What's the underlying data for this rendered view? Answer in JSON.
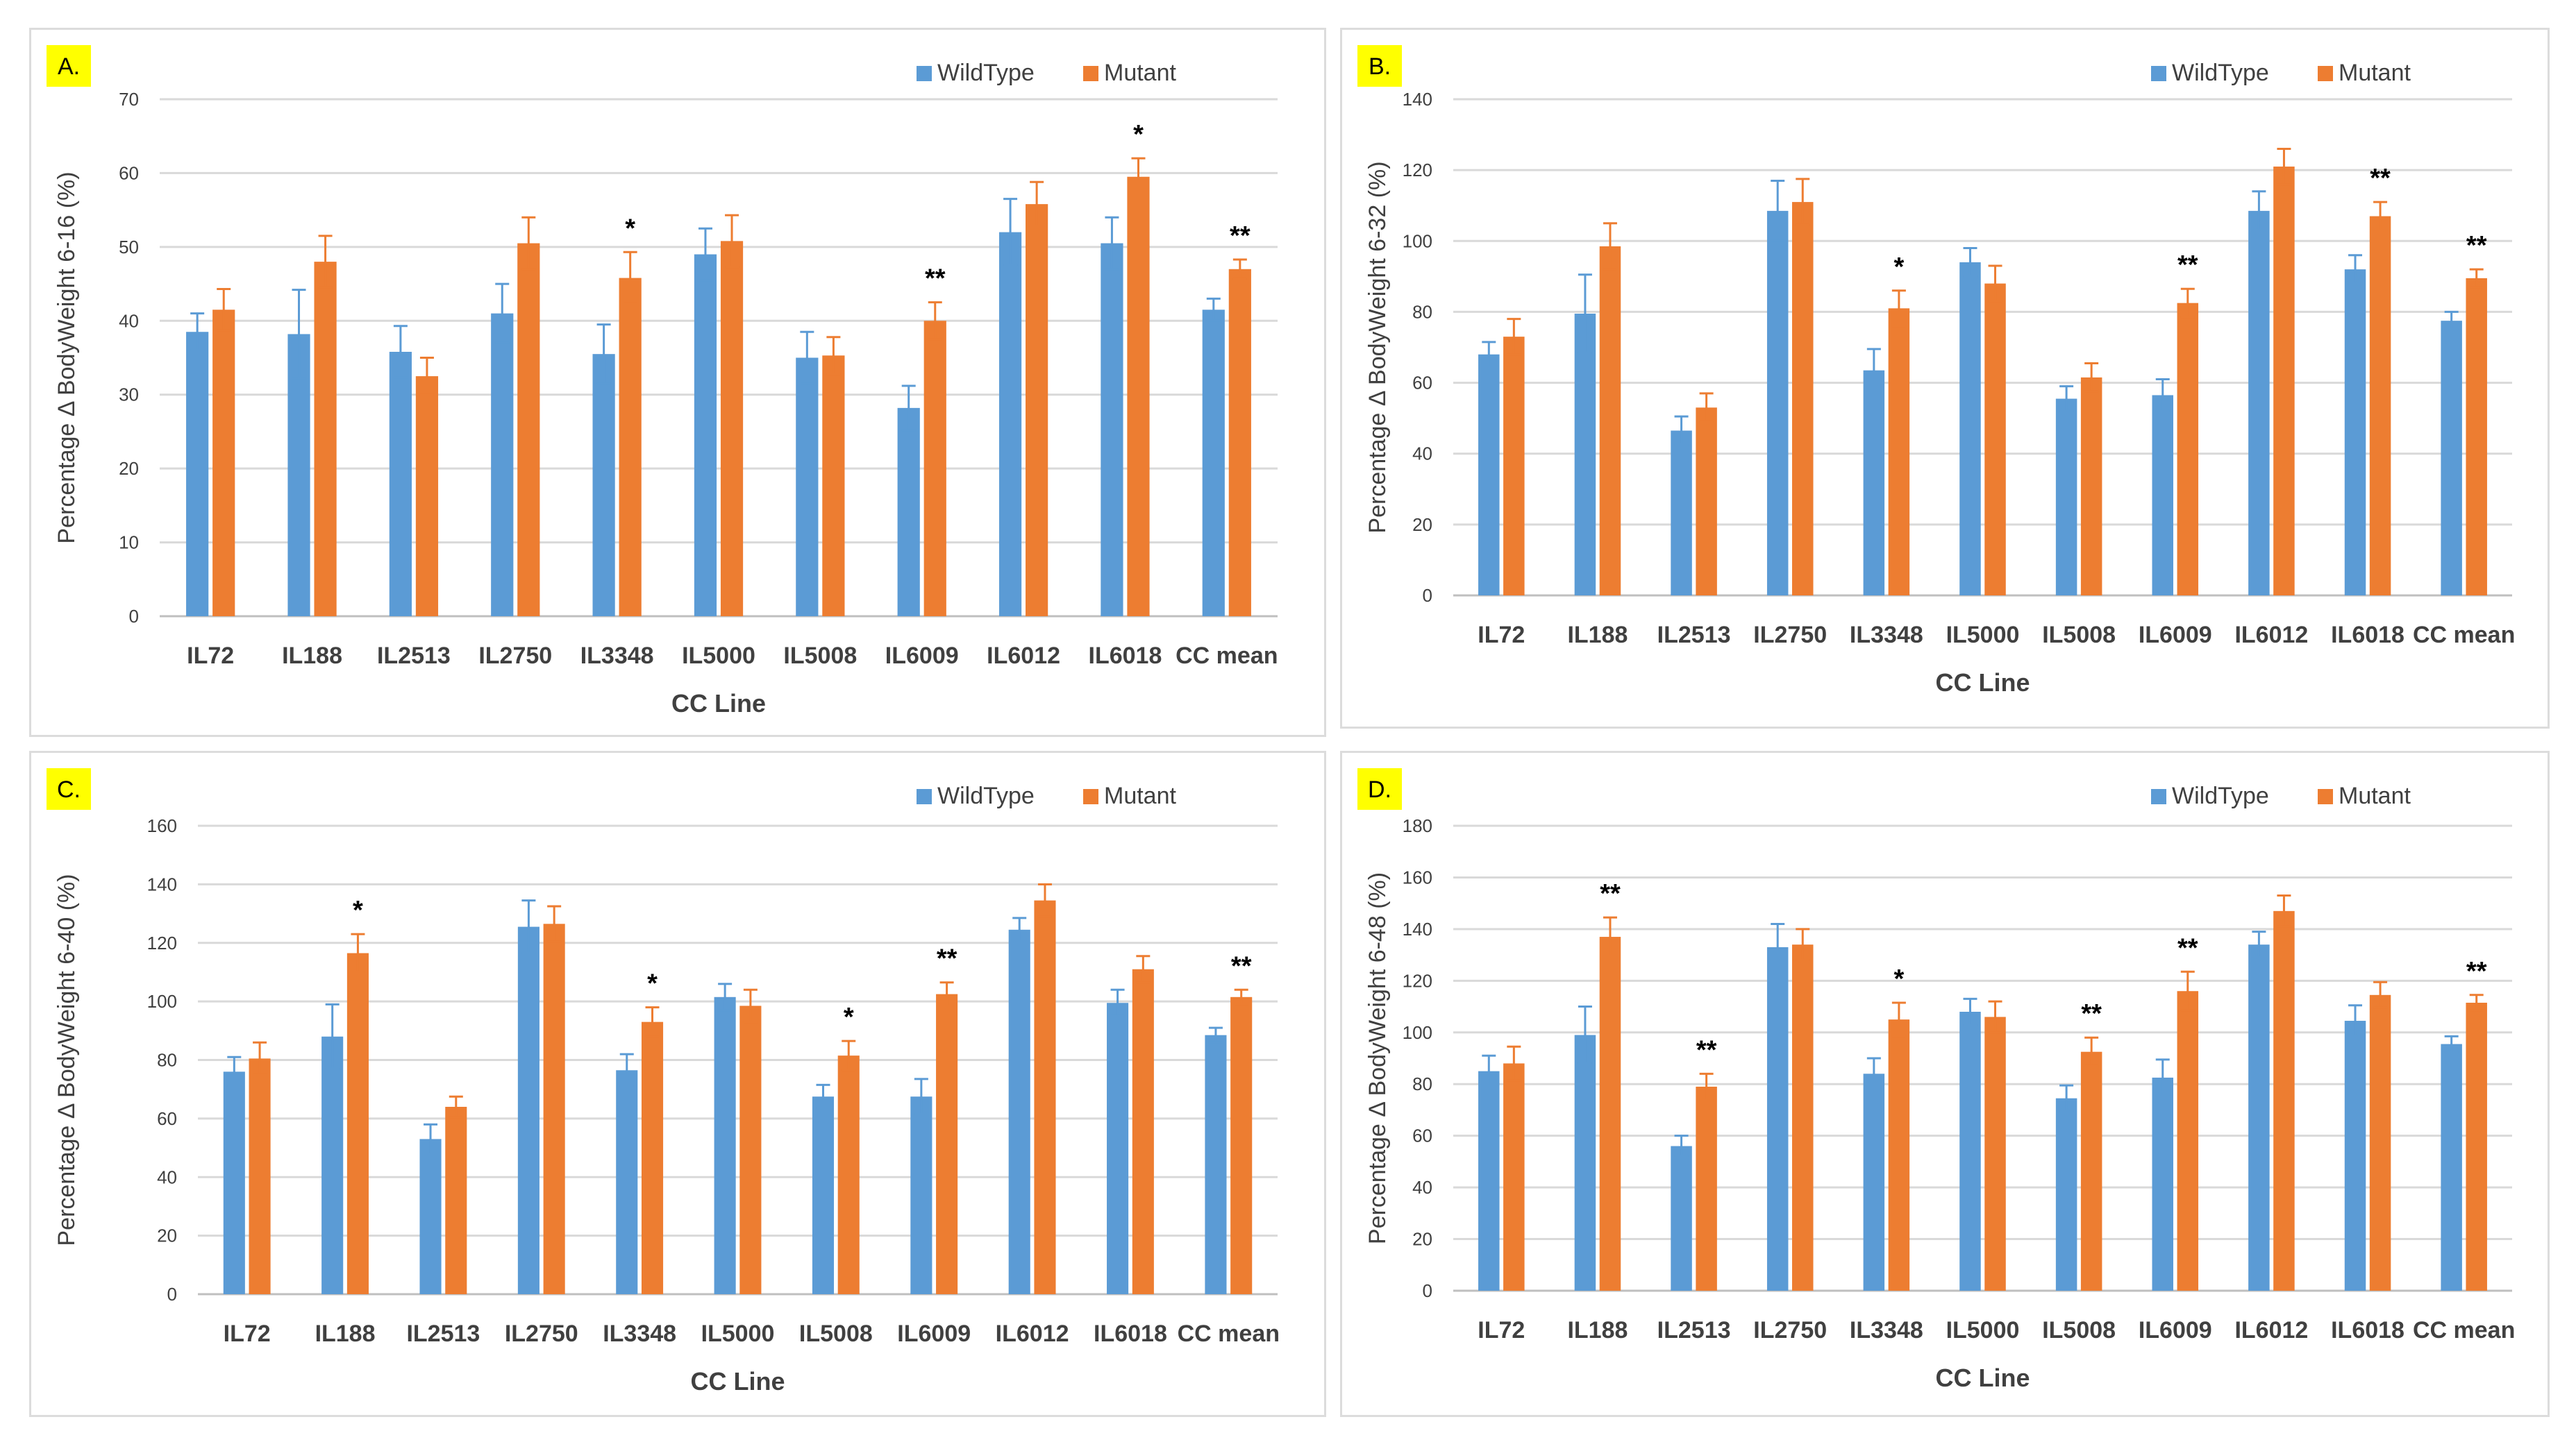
{
  "colors": {
    "wildtype": "#5b9bd5",
    "mutant": "#ed7d31",
    "grid": "#d9d9d9",
    "badge": "#ffff00",
    "text": "#404040"
  },
  "chart_data": [
    {
      "type": "bar",
      "panel_label": "A.",
      "ylabel": "Percentage Δ BodyWeight  6-16 (%)",
      "xlabel": "CC Line",
      "ylim": [
        0,
        70
      ],
      "yticks": [
        "0",
        "10",
        "20",
        "30",
        "40",
        "50",
        "60",
        "70"
      ],
      "legend_position": "top-right",
      "categories": [
        "IL72",
        "IL188",
        "IL2513",
        "IL2750",
        "IL3348",
        "IL5000",
        "IL5008",
        "IL6009",
        "IL6012",
        "IL6018",
        "CC mean"
      ],
      "series": [
        {
          "name": "WildType",
          "values": [
            38.5,
            38.2,
            35.8,
            41,
            35.5,
            49,
            35,
            28.2,
            52,
            50.5,
            41.5
          ],
          "errors": [
            2.5,
            6,
            3.5,
            4,
            4,
            3.5,
            3.5,
            3,
            4.5,
            3.5,
            1.5
          ]
        },
        {
          "name": "Mutant",
          "values": [
            41.5,
            48,
            32.5,
            50.5,
            45.8,
            50.8,
            35.3,
            40,
            55.8,
            59.5,
            47
          ],
          "errors": [
            2.8,
            3.5,
            2.5,
            3.5,
            3.5,
            3.5,
            2.5,
            2.5,
            3,
            2.5,
            1.3
          ]
        }
      ],
      "significance": [
        "",
        "",
        "",
        "",
        "*",
        "",
        "",
        "**",
        "",
        "*",
        "**"
      ]
    },
    {
      "type": "bar",
      "panel_label": "B.",
      "ylabel": "Percentage Δ BodyWeight  6-32 (%)",
      "xlabel": "CC Line",
      "ylim": [
        0,
        140
      ],
      "yticks": [
        "0",
        "20",
        "40",
        "60",
        "80",
        "100",
        "120",
        "140"
      ],
      "legend_position": "top-right",
      "categories": [
        "IL72",
        "IL188",
        "IL2513",
        "IL2750",
        "IL3348",
        "IL5000",
        "IL5008",
        "IL6009",
        "IL6012",
        "IL6018",
        "CC mean"
      ],
      "series": [
        {
          "name": "WildType",
          "values": [
            68,
            79.5,
            46.5,
            108.5,
            63.5,
            94,
            55.5,
            56.5,
            108.5,
            92,
            77.5
          ],
          "errors": [
            3.5,
            11,
            4,
            8.5,
            6,
            4,
            3.5,
            4.5,
            5.5,
            4,
            2.5
          ]
        },
        {
          "name": "Mutant",
          "values": [
            73,
            98.5,
            53,
            111,
            81,
            88,
            61.5,
            82.5,
            121,
            107,
            89.5
          ],
          "errors": [
            5,
            6.5,
            4,
            6.5,
            5,
            5,
            4,
            4,
            5,
            4,
            2.5
          ]
        }
      ],
      "significance": [
        "",
        "",
        "",
        "",
        "*",
        "",
        "",
        "**",
        "",
        "**",
        "**"
      ]
    },
    {
      "type": "bar",
      "panel_label": "C.",
      "ylabel": "Percentage Δ BodyWeight  6-40 (%)",
      "xlabel": "CC Line",
      "ylim": [
        0,
        160
      ],
      "yticks": [
        "0",
        "20",
        "40",
        "60",
        "80",
        "100",
        "120",
        "140",
        "160"
      ],
      "legend_position": "top-right",
      "categories": [
        "IL72",
        "IL188",
        "IL2513",
        "IL2750",
        "IL3348",
        "IL5000",
        "IL5008",
        "IL6009",
        "IL6012",
        "IL6018",
        "CC mean"
      ],
      "series": [
        {
          "name": "WildType",
          "values": [
            76,
            88,
            53,
            125.5,
            76.5,
            101.5,
            67.5,
            67.5,
            124.5,
            99.5,
            88.5
          ],
          "errors": [
            5,
            11,
            5,
            9,
            5.5,
            4.5,
            4,
            6,
            4,
            4.5,
            2.5
          ]
        },
        {
          "name": "Mutant",
          "values": [
            80.5,
            116.5,
            64,
            126.5,
            93,
            98.5,
            81.5,
            102.5,
            134.5,
            111,
            101.5
          ],
          "errors": [
            5.5,
            6.5,
            3.5,
            6,
            5,
            5.5,
            5,
            4,
            5.5,
            4.5,
            2.5
          ]
        }
      ],
      "significance": [
        "",
        "*",
        "",
        "",
        "*",
        "",
        "*",
        "**",
        "",
        "",
        "**"
      ]
    },
    {
      "type": "bar",
      "panel_label": "D.",
      "ylabel": "Percentage Δ BodyWeight  6-48 (%)",
      "xlabel": "CC Line",
      "ylim": [
        0,
        180
      ],
      "yticks": [
        "0",
        "20",
        "40",
        "60",
        "80",
        "100",
        "120",
        "140",
        "160",
        "180"
      ],
      "legend_position": "top-right",
      "categories": [
        "IL72",
        "IL188",
        "IL2513",
        "IL2750",
        "IL3348",
        "IL5000",
        "IL5008",
        "IL6009",
        "IL6012",
        "IL6018",
        "CC mean"
      ],
      "series": [
        {
          "name": "WildType",
          "values": [
            85,
            99,
            56,
            133,
            84,
            108,
            74.5,
            82.5,
            134,
            104.5,
            95.5
          ],
          "errors": [
            6,
            11,
            4,
            9,
            6,
            5,
            5,
            7,
            5,
            6,
            3
          ]
        },
        {
          "name": "Mutant",
          "values": [
            88,
            137,
            79,
            134,
            105,
            106,
            92.5,
            116,
            147,
            114.5,
            111.5
          ],
          "errors": [
            6.5,
            7.5,
            5,
            6,
            6.5,
            6,
            5.5,
            7.5,
            6,
            5,
            3
          ]
        }
      ],
      "significance": [
        "",
        "**",
        "**",
        "",
        "*",
        "",
        "**",
        "**",
        "",
        "",
        "**"
      ]
    }
  ]
}
